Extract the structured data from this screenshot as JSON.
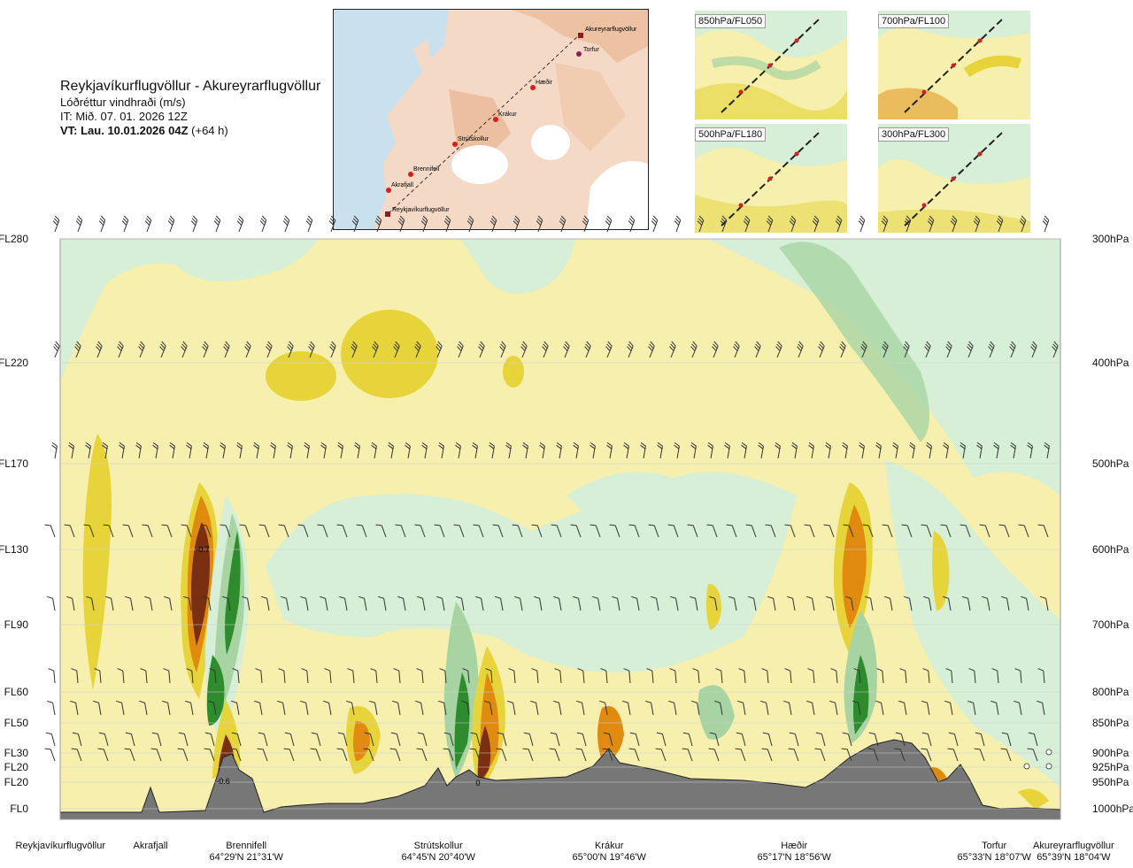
{
  "header": {
    "title": "Reykjavíkurflugvöllur - Akureyrarflugvöllur",
    "subtitle": "Lóðréttur vindhraði (m/s)",
    "issue_time": "IT: Mið. 07. 01. 2026 12Z",
    "valid_time": "VT: Lau. 10.01.2026 04Z",
    "lead": "(+64 h)"
  },
  "route_map": {
    "points": [
      {
        "name": "Akureyrarflugvöllur"
      },
      {
        "name": "Torfur"
      },
      {
        "name": "Hæðir"
      },
      {
        "name": "Krákur"
      },
      {
        "name": "Strútskollur"
      },
      {
        "name": "Brennifell"
      },
      {
        "name": "Akrafjall"
      },
      {
        "name": "Reykjavíkurflugvöllur"
      }
    ]
  },
  "mini_maps": [
    {
      "label": "850hPa/FL050"
    },
    {
      "label": "700hPa/FL100"
    },
    {
      "label": "500hPa/FL180"
    },
    {
      "label": "300hPa/FL300"
    }
  ],
  "chart_data": {
    "type": "heatmap",
    "quantity": "Lóðréttur vindhraði (m/s)",
    "levels": [
      {
        "fl": "FL280",
        "hpa": "300hPa"
      },
      {
        "fl": "FL220",
        "hpa": "400hPa"
      },
      {
        "fl": "FL170",
        "hpa": "500hPa"
      },
      {
        "fl": "FL130",
        "hpa": "600hPa"
      },
      {
        "fl": "FL90",
        "hpa": "700hPa"
      },
      {
        "fl": "FL60",
        "hpa": "800hPa"
      },
      {
        "fl": "FL50",
        "hpa": "850hPa"
      },
      {
        "fl": "FL30",
        "hpa": "900hPa"
      },
      {
        "fl": "FL20",
        "hpa": "925hPa"
      },
      {
        "fl": "FL20",
        "hpa": "950hPa"
      },
      {
        "fl": "FL0",
        "hpa": "1000hPa"
      }
    ],
    "locations": [
      {
        "name": "Reykjavíkurflugvöllur",
        "coord": "",
        "pos": 0.0
      },
      {
        "name": "Akrafjall",
        "coord": "",
        "pos": 0.09
      },
      {
        "name": "Brennifell",
        "coord": "64°29'N 21°31'W",
        "pos": 0.19
      },
      {
        "name": "Strútskollur",
        "coord": "64°45'N 20°40'W",
        "pos": 0.38
      },
      {
        "name": "Krákur",
        "coord": "65°00'N 19°46'W",
        "pos": 0.57
      },
      {
        "name": "Hæðir",
        "coord": "65°17'N 18°56'W",
        "pos": 0.75
      },
      {
        "name": "Torfur",
        "coord": "65°33'N 18°07'W",
        "pos": 0.95
      },
      {
        "name": "Akureyrarflugvöllur",
        "coord": "65°39'N 18°04'W",
        "pos": 1.0
      }
    ],
    "annotations": [
      "-0.7",
      "-0.6",
      "0"
    ],
    "colors": {
      "strong_down": "#7a3010",
      "down": "#e08a10",
      "weak_down": "#e6d43a",
      "neutral": "#f6efad",
      "weak_up": "#d6efd6",
      "up": "#a8d4a4",
      "strong_up": "#2e8c2e",
      "terrain": "#777777"
    }
  }
}
